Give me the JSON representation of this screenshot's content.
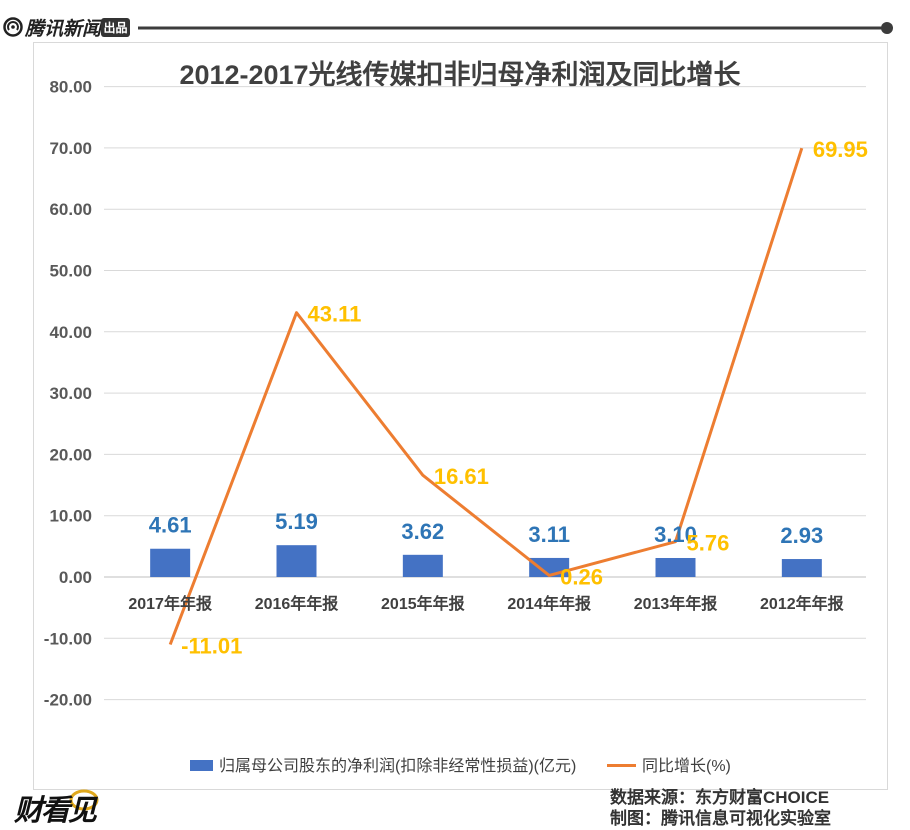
{
  "header": {
    "brand": "腾讯新闻",
    "badge": "出品",
    "logo_icon": "tencent-news-icon"
  },
  "chart_data": {
    "type": "bar",
    "title": "2012-2017光线传媒扣非归母净利润及同比增长",
    "categories": [
      "2017年年报",
      "2016年年报",
      "2015年年报",
      "2014年年报",
      "2013年年报",
      "2012年年报"
    ],
    "series": [
      {
        "name": "归属母公司股东的净利润(扣除非经常性损益)(亿元)",
        "type": "bar",
        "values": [
          4.61,
          5.19,
          3.62,
          3.11,
          3.1,
          2.93
        ],
        "data_labels": [
          "4.61",
          "5.19",
          "3.62",
          "3.11",
          "3.10",
          "2.93"
        ],
        "color": "#4472C4",
        "label_color": "#2E75B6"
      },
      {
        "name": "同比增长(%)",
        "type": "line",
        "values": [
          -11.01,
          43.11,
          16.61,
          0.26,
          5.76,
          69.95
        ],
        "data_labels": [
          "-11.01",
          "43.11",
          "16.61",
          "0.26",
          "5.76",
          "69.95"
        ],
        "color": "#ED7D31",
        "label_color": "#FFC000"
      }
    ],
    "y_ticks": [
      "80.00",
      "70.00",
      "60.00",
      "50.00",
      "40.00",
      "30.00",
      "20.00",
      "10.00",
      "0.00",
      "-10.00",
      "-20.00"
    ],
    "ylim": [
      -20,
      80
    ],
    "xlabel": "",
    "ylabel": "",
    "grid": true,
    "legend_position": "bottom-center"
  },
  "footer": {
    "logo_text": "财看见",
    "source": "数据来源：东方财富CHOICE",
    "credit": "制图：腾讯信息可视化实验室"
  }
}
